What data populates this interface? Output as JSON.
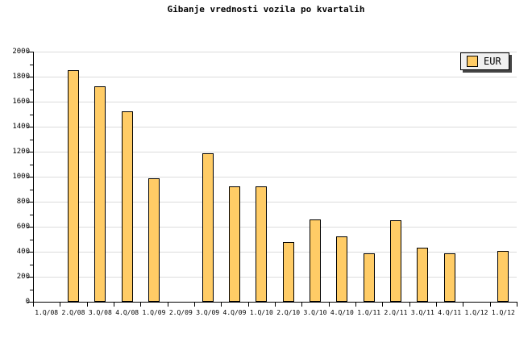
{
  "chart_data": {
    "type": "bar",
    "title": "Gibanje vrednosti vozila po kvartalih",
    "categories": [
      "1.Q/08",
      "2.Q/08",
      "3.Q/08",
      "4.Q/08",
      "1.Q/09",
      "2.Q/09",
      "3.Q/09",
      "4.Q/09",
      "1.Q/10",
      "2.Q/10",
      "3.Q/10",
      "4.Q/10",
      "1.Q/11",
      "2.Q/11",
      "3.Q/11",
      "4.Q/11",
      "1.Q/12",
      "1.Q/12"
    ],
    "series": [
      {
        "name": "EUR",
        "color": "#FFCC66",
        "values": [
          null,
          1850,
          1725,
          1520,
          990,
          null,
          1190,
          925,
          925,
          475,
          660,
          520,
          390,
          650,
          430,
          385,
          null,
          405
        ]
      }
    ],
    "xlabel": "",
    "ylabel": "",
    "ylim": [
      0,
      2000
    ],
    "ytick_step": 200,
    "ytick_minor_step": 100,
    "yticks": [
      "0",
      "200",
      "400",
      "600",
      "800",
      "1000",
      "1200",
      "1400",
      "1600",
      "1800",
      "2000"
    ],
    "grid": "horizontal-major",
    "legend": {
      "label": "EUR",
      "position": "top-right"
    }
  },
  "colors": {
    "background": "#FFFFFF",
    "bar_fill": "#FFCC66",
    "bar_border": "#000000",
    "gridline": "#DCDCDC",
    "axis": "#000000",
    "text": "#000000",
    "legend_bg": "#F0F0F0",
    "legend_border": "#000000",
    "legend_shadow": "#444444"
  }
}
